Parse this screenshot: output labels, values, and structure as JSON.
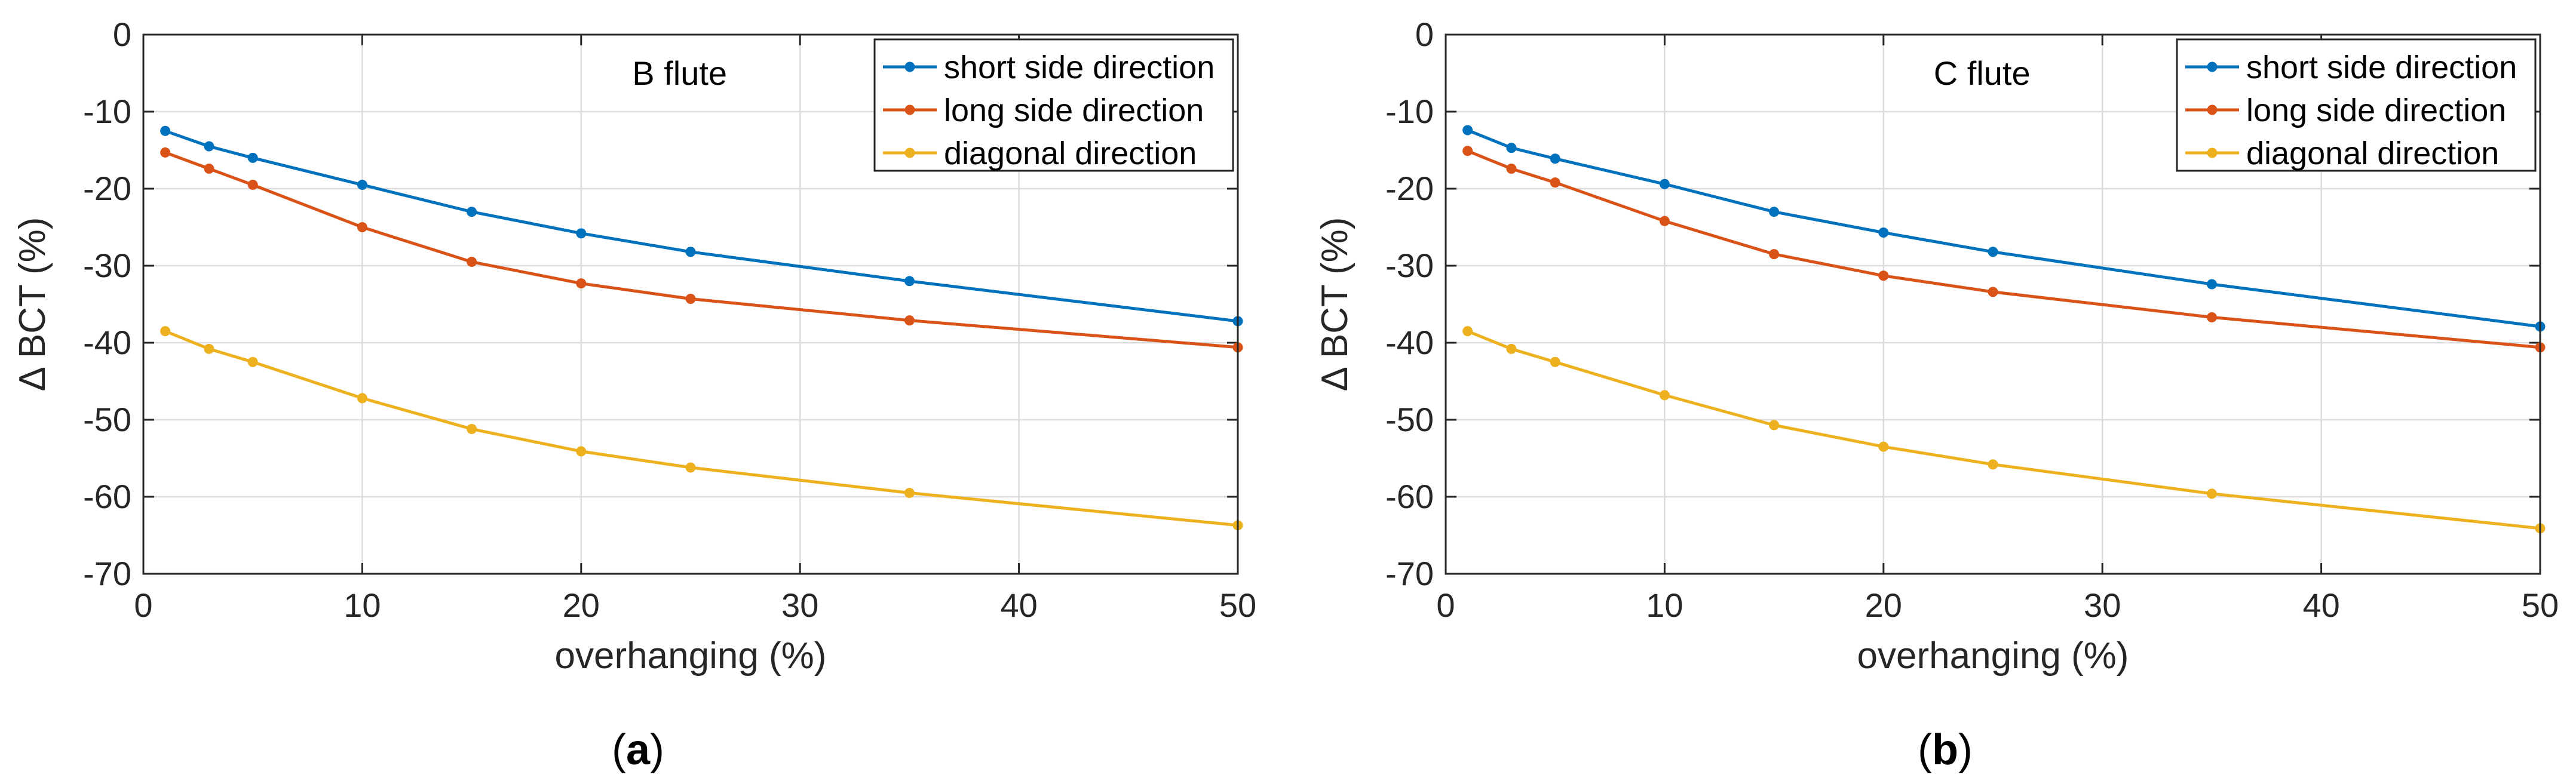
{
  "chart_data": [
    {
      "type": "line",
      "title": "B flute",
      "caption_letter": "a",
      "xlabel": "overhanging (%)",
      "ylabel": "Δ BCT (%)",
      "xlim": [
        0,
        50
      ],
      "ylim": [
        -70,
        0
      ],
      "xticks": [
        0,
        10,
        20,
        30,
        40,
        50
      ],
      "yticks": [
        0,
        -10,
        -20,
        -30,
        -40,
        -50,
        -60,
        -70
      ],
      "grid": true,
      "legend_position": "top-right",
      "x": [
        1,
        3,
        5,
        10,
        15,
        20,
        25,
        35,
        50
      ],
      "series": [
        {
          "name": "short side direction",
          "color": "#0072BD",
          "values": [
            -12.5,
            -14.5,
            -16,
            -19.5,
            -23,
            -25.8,
            -28.2,
            -32,
            -37.2
          ]
        },
        {
          "name": "long side direction",
          "color": "#D95319",
          "values": [
            -15.3,
            -17.4,
            -19.5,
            -25,
            -29.5,
            -32.3,
            -34.3,
            -37.1,
            -40.6
          ]
        },
        {
          "name": "diagonal direction",
          "color": "#EDB120",
          "values": [
            -38.5,
            -40.8,
            -42.5,
            -47.2,
            -51.2,
            -54.1,
            -56.2,
            -59.5,
            -63.7
          ]
        }
      ]
    },
    {
      "type": "line",
      "title": "C flute",
      "caption_letter": "b",
      "xlabel": "overhanging (%)",
      "ylabel": "Δ BCT (%)",
      "xlim": [
        0,
        50
      ],
      "ylim": [
        -70,
        0
      ],
      "xticks": [
        0,
        10,
        20,
        30,
        40,
        50
      ],
      "yticks": [
        0,
        -10,
        -20,
        -30,
        -40,
        -50,
        -60,
        -70
      ],
      "grid": true,
      "legend_position": "top-right",
      "x": [
        1,
        3,
        5,
        10,
        15,
        20,
        25,
        35,
        50
      ],
      "series": [
        {
          "name": "short side direction",
          "color": "#0072BD",
          "values": [
            -12.4,
            -14.7,
            -16.1,
            -19.4,
            -23,
            -25.7,
            -28.2,
            -32.4,
            -37.9
          ]
        },
        {
          "name": "long side direction",
          "color": "#D95319",
          "values": [
            -15.1,
            -17.4,
            -19.2,
            -24.2,
            -28.5,
            -31.3,
            -33.4,
            -36.7,
            -40.6
          ]
        },
        {
          "name": "diagonal direction",
          "color": "#EDB120",
          "values": [
            -38.5,
            -40.8,
            -42.5,
            -46.8,
            -50.7,
            -53.5,
            -55.8,
            -59.6,
            -64.1
          ]
        }
      ]
    }
  ]
}
